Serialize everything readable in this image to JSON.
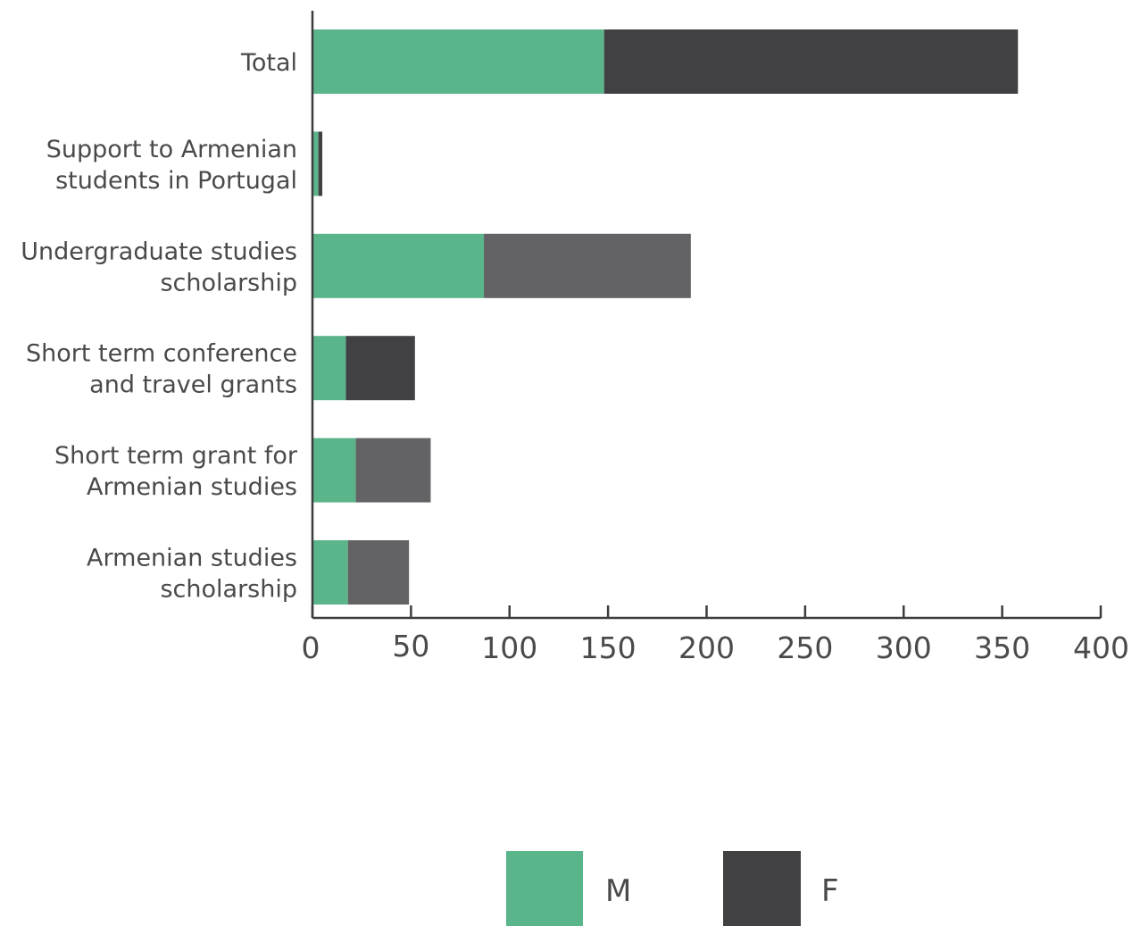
{
  "colors": {
    "m": "#5bb58a",
    "f_dark": "#414043",
    "f_mid": "#636365",
    "axis": "#3d3d3f",
    "text": "#4a4a4c"
  },
  "chart_data": {
    "type": "bar",
    "orientation": "horizontal",
    "stacked": true,
    "title": "",
    "xlabel": "",
    "ylabel": "",
    "xlim": [
      0,
      400
    ],
    "xticks": [
      "0",
      "50",
      "100",
      "150",
      "200",
      "250",
      "300",
      "350",
      "400"
    ],
    "grid": false,
    "legend_position": "bottom",
    "categories": [
      {
        "label_lines": [
          "Total"
        ],
        "m": 148,
        "f": 210,
        "f_shade": "dark"
      },
      {
        "label_lines": [
          "Support to Armenian",
          "students in Portugal"
        ],
        "m": 3,
        "f": 2,
        "f_shade": "dark"
      },
      {
        "label_lines": [
          "Undergraduate studies",
          "scholarship"
        ],
        "m": 87,
        "f": 105,
        "f_shade": "mid"
      },
      {
        "label_lines": [
          "Short term conference",
          "and travel grants"
        ],
        "m": 17,
        "f": 35,
        "f_shade": "dark"
      },
      {
        "label_lines": [
          "Short term grant for",
          "Armenian studies"
        ],
        "m": 22,
        "f": 38,
        "f_shade": "mid"
      },
      {
        "label_lines": [
          "Armenian studies",
          "scholarship"
        ],
        "m": 18,
        "f": 31,
        "f_shade": "mid"
      }
    ],
    "series": [
      {
        "name": "M"
      },
      {
        "name": "F"
      }
    ]
  }
}
